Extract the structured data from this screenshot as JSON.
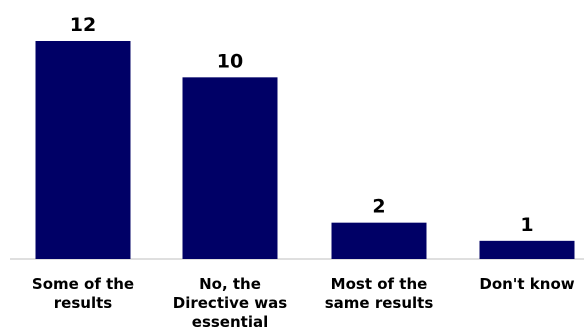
{
  "chart_data": {
    "type": "bar",
    "categories": [
      [
        "Some of the",
        "results"
      ],
      [
        "No, the",
        "Directive was",
        "essential"
      ],
      [
        "Most of the",
        "same results"
      ],
      [
        "Don't know"
      ]
    ],
    "values": [
      12,
      10,
      2,
      1
    ],
    "value_labels": [
      "12",
      "10",
      "2",
      "1"
    ],
    "ylim": [
      0,
      12
    ],
    "grid": false,
    "bar_color": "#000066"
  }
}
